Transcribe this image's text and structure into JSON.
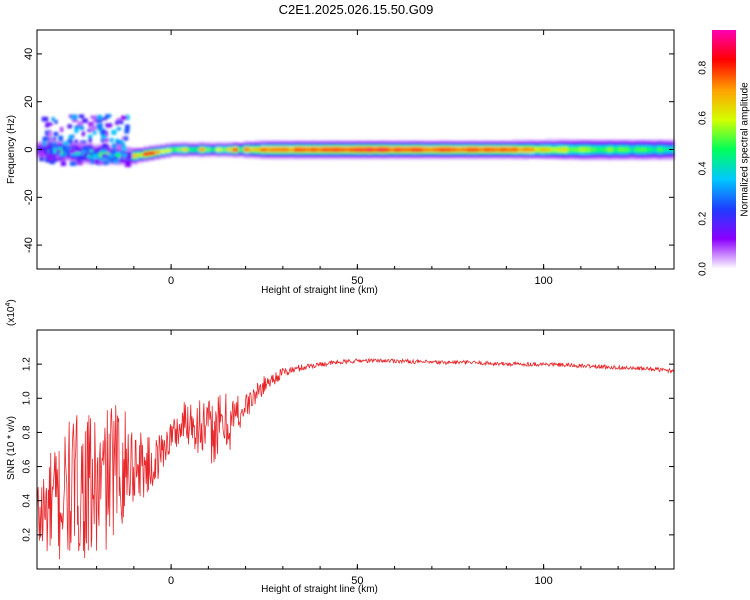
{
  "figure_title": "C2E1.2025.026.15.50.G09",
  "colors": {
    "snr_line": "#e8262a",
    "axis": "#000000",
    "colormap": [
      "#ffffff",
      "#8c00ff",
      "#1f3cff",
      "#00c8ff",
      "#00ff5a",
      "#d4ff00",
      "#ffa000",
      "#ff0000",
      "#ff00b4"
    ]
  },
  "chart_data": [
    {
      "type": "heatmap",
      "title": "",
      "xlabel": "Height of straight line (km)",
      "ylabel": "Frequency (Hz)",
      "xlim": [
        -36,
        135
      ],
      "ylim": [
        -50,
        50
      ],
      "xticks": [
        0,
        50,
        100
      ],
      "yticks": [
        -40,
        -20,
        0,
        20,
        40
      ],
      "xtick_labels": [
        "0",
        "50",
        "100"
      ],
      "ytick_labels": [
        "-40",
        "-20",
        "0",
        "20",
        "40"
      ],
      "colorbar": {
        "label": "Normalized spectral amplitude",
        "range": [
          0,
          0.95
        ],
        "ticks": [
          0.0,
          0.2,
          0.4,
          0.6,
          0.8
        ],
        "tick_labels": [
          "0.0",
          "0.2",
          "0.4",
          "0.6",
          "0.8"
        ]
      },
      "ridge": {
        "description_points_x": [
          -36,
          -20,
          -12,
          -8,
          0,
          15,
          25,
          50,
          90,
          110,
          135
        ],
        "center_freq_hz": [
          0,
          -2,
          -3,
          -2,
          0,
          0,
          0,
          0,
          0,
          0,
          0
        ],
        "peak_amplitude": [
          0.35,
          0.45,
          0.4,
          0.75,
          0.6,
          0.65,
          0.75,
          0.85,
          0.78,
          0.55,
          0.45
        ],
        "halfwidth_hz": [
          3,
          3,
          2.5,
          2,
          2,
          2,
          2.5,
          2.5,
          2.5,
          3,
          3
        ]
      },
      "scatter_region": {
        "x_range": [
          -36,
          -12
        ],
        "freq_range": [
          -5,
          15
        ],
        "amplitude": 0.25
      }
    },
    {
      "type": "line",
      "title": "",
      "xlabel": "Height of straight line (km)",
      "ylabel": "SNR (10 * v/v)",
      "y_multiplier_label": "(x10",
      "y_multiplier_exp": "4",
      "xlim": [
        -36,
        135
      ],
      "ylim": [
        0,
        1.4
      ],
      "xticks": [
        0,
        50,
        100
      ],
      "yticks": [
        0.2,
        0.4,
        0.6,
        0.8,
        1.0,
        1.2
      ],
      "xtick_labels": [
        "0",
        "50",
        "100"
      ],
      "ytick_labels": [
        "0.2",
        "0.4",
        "0.6",
        "0.8",
        "1.0",
        "1.2"
      ],
      "series": [
        {
          "x": [
            -36,
            -30,
            -25,
            -20,
            -15,
            -10,
            -5,
            0,
            5,
            10,
            15,
            20,
            25,
            30,
            35,
            40,
            50,
            60,
            70,
            80,
            90,
            100,
            110,
            120,
            130,
            135
          ],
          "y": [
            0.3,
            0.4,
            0.5,
            0.45,
            0.6,
            0.62,
            0.6,
            0.78,
            0.88,
            0.8,
            0.85,
            0.95,
            1.08,
            1.15,
            1.18,
            1.2,
            1.22,
            1.22,
            1.21,
            1.21,
            1.2,
            1.2,
            1.19,
            1.18,
            1.17,
            1.16
          ],
          "noise": [
            0.25,
            0.4,
            0.42,
            0.45,
            0.4,
            0.25,
            0.15,
            0.1,
            0.16,
            0.2,
            0.2,
            0.08,
            0.05,
            0.03,
            0.02,
            0.015,
            0.012,
            0.012,
            0.012,
            0.012,
            0.012,
            0.012,
            0.012,
            0.012,
            0.012,
            0.012
          ]
        }
      ]
    }
  ]
}
